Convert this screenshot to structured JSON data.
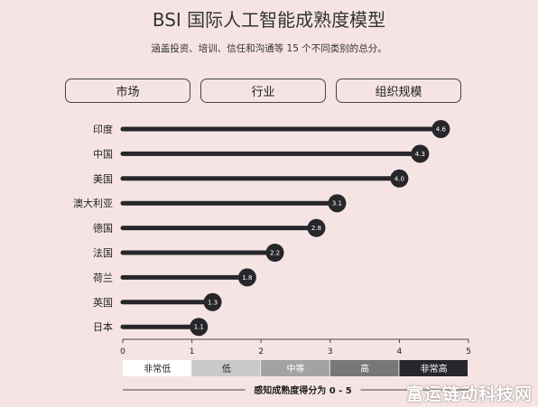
{
  "header": {
    "title": "BSI 国际人工智能成熟度模型",
    "subtitle": "涵盖投资、培训、信任和沟通等 15 个不同类别的总分。"
  },
  "tabs": [
    {
      "label": "市场"
    },
    {
      "label": "行业"
    },
    {
      "label": "组织规模"
    }
  ],
  "chart_data": {
    "type": "bar",
    "orientation": "horizontal",
    "categories": [
      "印度",
      "中国",
      "美国",
      "澳大利亚",
      "德国",
      "法国",
      "荷兰",
      "英国",
      "日本"
    ],
    "values": [
      4.6,
      4.3,
      4.0,
      3.1,
      2.8,
      2.2,
      1.8,
      1.3,
      1.1
    ],
    "value_labels": [
      "4.6",
      "4.3",
      "4.0",
      "3.1",
      "2.8",
      "2.2",
      "1.8",
      "1.3",
      "1.1"
    ],
    "xlim": [
      0,
      5
    ],
    "xticks": [
      "0",
      "1",
      "2",
      "3",
      "4",
      "5"
    ],
    "xlabel": "感知成熟度得分为 0 - 5",
    "legend_scale": [
      {
        "label": "非常低",
        "color": "#ffffff",
        "text_color": "#222222"
      },
      {
        "label": "低",
        "color": "#c9c9c9",
        "text_color": "#222222"
      },
      {
        "label": "中等",
        "color": "#a2a2a2",
        "text_color": "#ffffff"
      },
      {
        "label": "高",
        "color": "#777777",
        "text_color": "#ffffff"
      },
      {
        "label": "非常高",
        "color": "#27262b",
        "text_color": "#ffffff"
      }
    ],
    "bar_color": "#27262b",
    "grid": false
  },
  "watermark": "富运链动科技网"
}
